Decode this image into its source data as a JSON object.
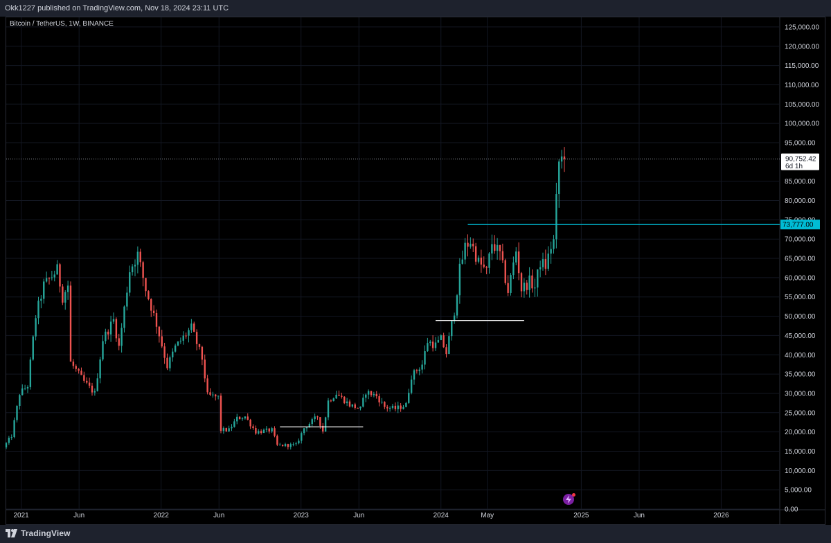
{
  "header": {
    "published_text": "Okk1227 published on TradingView.com, Nov 18, 2024 23:11 UTC"
  },
  "symbol": {
    "label": "Bitcoin / TetherUS, 1W, BINANCE"
  },
  "footer": {
    "brand": "TradingView"
  },
  "colors": {
    "up": "#26a69a",
    "down": "#ef5350",
    "level_line": "#00bcd4",
    "support_line": "#ffffff",
    "grid": "#131722",
    "axis_bg": "#000000"
  },
  "icons": [
    "tradingview-logo-icon",
    "flash-icon"
  ],
  "chart_data": {
    "type": "candlestick",
    "title": "Bitcoin / TetherUS, 1W, BINANCE",
    "interval": "1W",
    "ylim": [
      0,
      127500
    ],
    "y_ticks": [
      {
        "value": 125000,
        "label": "125,000.00"
      },
      {
        "value": 120000,
        "label": "120,000.00"
      },
      {
        "value": 115000,
        "label": "115,000.00"
      },
      {
        "value": 110000,
        "label": "110,000.00"
      },
      {
        "value": 105000,
        "label": "105,000.00"
      },
      {
        "value": 100000,
        "label": "100,000.00"
      },
      {
        "value": 95000,
        "label": "95,000.00"
      },
      {
        "value": 85000,
        "label": "85,000.00"
      },
      {
        "value": 80000,
        "label": "80,000.00"
      },
      {
        "value": 75000,
        "label": "75,000.00"
      },
      {
        "value": 70000,
        "label": "70,000.00"
      },
      {
        "value": 65000,
        "label": "65,000.00"
      },
      {
        "value": 60000,
        "label": "60,000.00"
      },
      {
        "value": 55000,
        "label": "55,000.00"
      },
      {
        "value": 50000,
        "label": "50,000.00"
      },
      {
        "value": 45000,
        "label": "45,000.00"
      },
      {
        "value": 40000,
        "label": "40,000.00"
      },
      {
        "value": 35000,
        "label": "35,000.00"
      },
      {
        "value": 30000,
        "label": "30,000.00"
      },
      {
        "value": 25000,
        "label": "25,000.00"
      },
      {
        "value": 20000,
        "label": "20,000.00"
      },
      {
        "value": 15000,
        "label": "15,000.00"
      },
      {
        "value": 10000,
        "label": "10,000.00"
      },
      {
        "value": 5000,
        "label": "5,000.00"
      },
      {
        "value": 0,
        "label": "0.00"
      }
    ],
    "x_ticks": [
      {
        "label": "2021",
        "date": "2021-01-01"
      },
      {
        "label": "Jun",
        "date": "2021-06-01"
      },
      {
        "label": "2022",
        "date": "2022-01-01"
      },
      {
        "label": "Jun",
        "date": "2022-06-01"
      },
      {
        "label": "2023",
        "date": "2023-01-01"
      },
      {
        "label": "Jun",
        "date": "2023-06-01"
      },
      {
        "label": "2024",
        "date": "2024-01-01"
      },
      {
        "label": "May",
        "date": "2024-05-01"
      },
      {
        "label": "2025",
        "date": "2025-01-01"
      },
      {
        "label": "Jun",
        "date": "2025-06-01"
      },
      {
        "label": "2026",
        "date": "2026-01-01"
      }
    ],
    "current_price": {
      "value": 90752.42,
      "label": "90,752.42",
      "countdown": "6d 1h"
    },
    "level_line": {
      "value": 73777,
      "label": "73,777.00",
      "start_date": "2024-03-11"
    },
    "support_lines": [
      {
        "value": 21300,
        "start_date": "2022-11-07",
        "end_date": "2023-06-12"
      },
      {
        "value": 48900,
        "start_date": "2023-12-18",
        "end_date": "2024-08-05"
      }
    ],
    "date_range": [
      "2020-11-23",
      "2026-06-01"
    ],
    "anchors": [
      [
        "2020-11-23",
        16000
      ],
      [
        "2020-12-14",
        19000
      ],
      [
        "2021-01-04",
        30000
      ],
      [
        "2021-01-25",
        32000
      ],
      [
        "2021-02-15",
        50000
      ],
      [
        "2021-03-08",
        58000
      ],
      [
        "2021-04-12",
        62000
      ],
      [
        "2021-04-26",
        55000
      ],
      [
        "2021-05-10",
        58000
      ],
      [
        "2021-05-17",
        38000
      ],
      [
        "2021-06-07",
        35000
      ],
      [
        "2021-06-21",
        33000
      ],
      [
        "2021-07-19",
        30000
      ],
      [
        "2021-08-09",
        44000
      ],
      [
        "2021-09-06",
        49000
      ],
      [
        "2021-09-20",
        42000
      ],
      [
        "2021-10-18",
        62000
      ],
      [
        "2021-11-08",
        66000
      ],
      [
        "2021-11-29",
        57000
      ],
      [
        "2021-12-27",
        48000
      ],
      [
        "2022-01-24",
        37000
      ],
      [
        "2022-02-14",
        42000
      ],
      [
        "2022-03-28",
        47000
      ],
      [
        "2022-04-25",
        39000
      ],
      [
        "2022-05-09",
        29500
      ],
      [
        "2022-06-06",
        29000
      ],
      [
        "2022-06-13",
        20500
      ],
      [
        "2022-07-04",
        20500
      ],
      [
        "2022-07-25",
        23500
      ],
      [
        "2022-08-15",
        24000
      ],
      [
        "2022-09-12",
        20000
      ],
      [
        "2022-10-24",
        20500
      ],
      [
        "2022-11-07",
        16500
      ],
      [
        "2022-12-26",
        16600
      ],
      [
        "2023-01-16",
        21000
      ],
      [
        "2023-02-20",
        24000
      ],
      [
        "2023-03-06",
        20200
      ],
      [
        "2023-03-20",
        28000
      ],
      [
        "2023-04-10",
        30000
      ],
      [
        "2023-05-15",
        27000
      ],
      [
        "2023-06-12",
        26000
      ],
      [
        "2023-06-26",
        30400
      ],
      [
        "2023-07-24",
        29300
      ],
      [
        "2023-08-14",
        26500
      ],
      [
        "2023-09-11",
        26000
      ],
      [
        "2023-10-09",
        27000
      ],
      [
        "2023-10-23",
        34500
      ],
      [
        "2023-11-20",
        37500
      ],
      [
        "2023-12-04",
        43500
      ],
      [
        "2023-12-25",
        42500
      ],
      [
        "2024-01-08",
        44000
      ],
      [
        "2024-01-22",
        40500
      ],
      [
        "2024-02-12",
        51500
      ],
      [
        "2024-02-26",
        62000
      ],
      [
        "2024-03-11",
        68000
      ],
      [
        "2024-03-25",
        69500
      ],
      [
        "2024-04-15",
        64000
      ],
      [
        "2024-05-06",
        61500
      ],
      [
        "2024-05-20",
        69000
      ],
      [
        "2024-06-10",
        66000
      ],
      [
        "2024-07-01",
        56500
      ],
      [
        "2024-07-22",
        67000
      ],
      [
        "2024-08-05",
        57000
      ],
      [
        "2024-08-26",
        59000
      ],
      [
        "2024-09-09",
        57500
      ],
      [
        "2024-09-23",
        64000
      ],
      [
        "2024-10-07",
        63000
      ],
      [
        "2024-10-21",
        68000
      ],
      [
        "2024-10-28",
        69500
      ],
      [
        "2024-11-04",
        80000
      ],
      [
        "2024-11-11",
        90000
      ],
      [
        "2024-11-18",
        90752
      ]
    ]
  }
}
